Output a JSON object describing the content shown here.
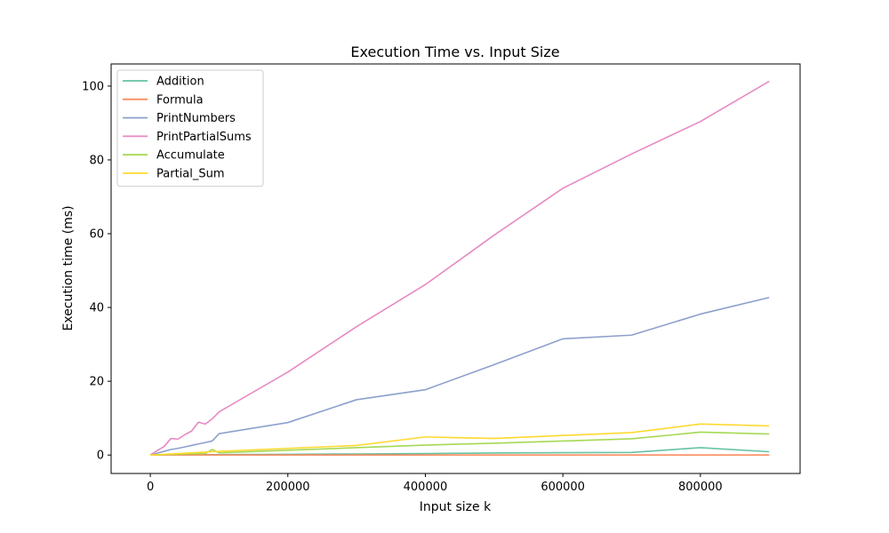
{
  "chart_data": {
    "type": "line",
    "title": "Execution Time vs. Input Size",
    "xlabel": "Input size k",
    "ylabel": "Execution time (ms)",
    "xlim": [
      -57000,
      945000
    ],
    "ylim": [
      -5,
      106
    ],
    "xticks": [
      0,
      200000,
      400000,
      600000,
      800000
    ],
    "yticks": [
      0,
      20,
      40,
      60,
      80,
      100
    ],
    "grid": false,
    "legend_position": "upper-left",
    "x": [
      1,
      10000,
      20000,
      30000,
      40000,
      50000,
      60000,
      70000,
      80000,
      90000,
      100000,
      200000,
      300000,
      400000,
      500000,
      600000,
      700000,
      800000,
      900000
    ],
    "series": [
      {
        "name": "Addition",
        "color": "#66c2a5",
        "values": [
          0,
          0.02,
          0.03,
          0.05,
          0.06,
          0.07,
          0.08,
          0.09,
          0.1,
          0.11,
          0.12,
          0.2,
          0.3,
          0.4,
          0.55,
          0.65,
          0.7,
          2.0,
          0.9
        ]
      },
      {
        "name": "Formula",
        "color": "#fc8d62",
        "values": [
          0,
          0,
          0,
          0,
          0,
          0,
          0,
          0,
          0,
          0,
          0,
          0,
          0,
          0,
          0,
          0,
          0,
          0,
          0
        ]
      },
      {
        "name": "PrintNumbers",
        "color": "#8da0cb",
        "values": [
          0,
          0.5,
          1.0,
          1.5,
          1.8,
          2.2,
          2.6,
          3.0,
          3.4,
          3.8,
          5.8,
          8.8,
          15.0,
          17.7,
          24.5,
          31.5,
          32.5,
          38.2,
          42.7
        ]
      },
      {
        "name": "PrintPartialSums",
        "color": "#e78ac3",
        "values": [
          0,
          1.2,
          2.3,
          4.5,
          4.3,
          5.5,
          6.5,
          8.9,
          8.4,
          9.8,
          11.7,
          22.5,
          34.8,
          46.2,
          59.6,
          72.3,
          81.6,
          90.4,
          101.3
        ]
      },
      {
        "name": "Accumulate",
        "color": "#a6d854",
        "values": [
          0,
          0.05,
          0.1,
          0.15,
          0.2,
          0.25,
          0.3,
          0.35,
          0.4,
          1.5,
          0.6,
          1.3,
          2.0,
          2.7,
          3.2,
          3.8,
          4.4,
          6.2,
          5.7
        ]
      },
      {
        "name": "Partial_Sum",
        "color": "#ffd92f",
        "values": [
          0,
          0.1,
          0.2,
          0.3,
          0.4,
          0.5,
          0.6,
          0.7,
          0.8,
          0.9,
          1.0,
          1.8,
          2.6,
          4.9,
          4.5,
          5.3,
          6.1,
          8.4,
          7.9
        ]
      }
    ]
  }
}
